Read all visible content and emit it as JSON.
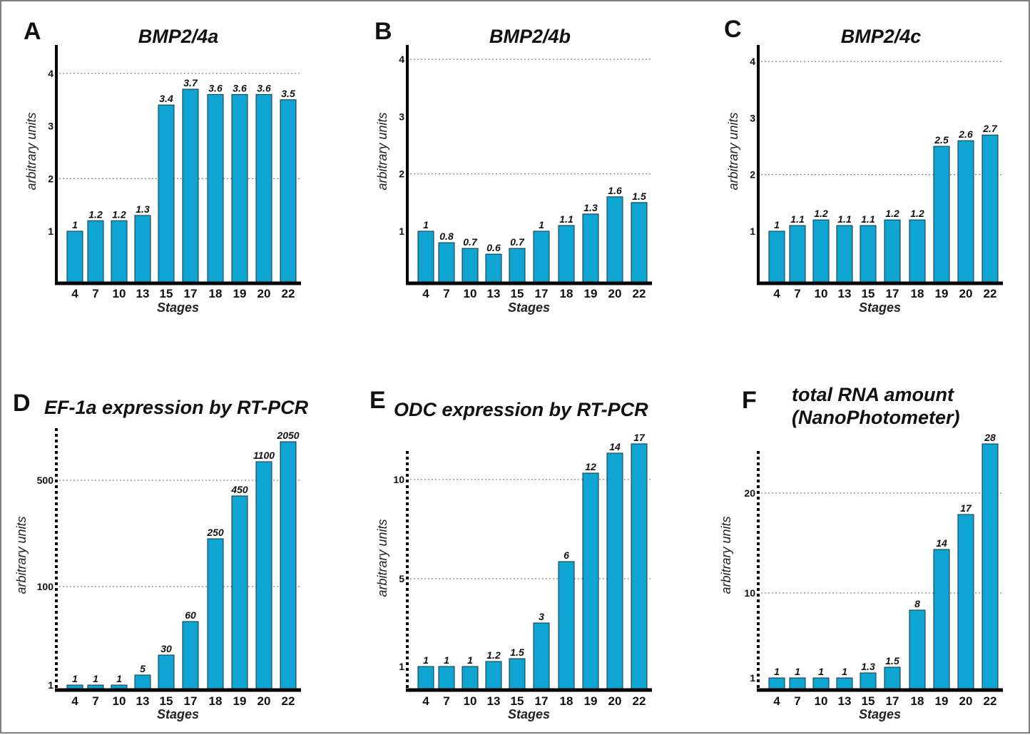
{
  "chart_data": [
    {
      "panel": "A",
      "type": "bar",
      "title": "BMP2/4a",
      "xlabel": "Stages",
      "ylabel": "arbitrary units",
      "categories": [
        "4",
        "7",
        "10",
        "13",
        "15",
        "17",
        "18",
        "19",
        "20",
        "22"
      ],
      "values": [
        1,
        1.2,
        1.2,
        1.3,
        3.4,
        3.7,
        3.6,
        3.6,
        3.6,
        3.5
      ],
      "data_labels": [
        "1",
        "1.2",
        "1.2",
        "1.3",
        "3.4",
        "3.7",
        "3.6",
        "3.6",
        "3.6",
        "3.5"
      ],
      "yticks": [
        "1",
        "2",
        "3",
        "4"
      ],
      "ylim": [
        0,
        4.5
      ],
      "grid": "dotted horizontal at 2 and 4"
    },
    {
      "panel": "B",
      "type": "bar",
      "title": "BMP2/4b",
      "xlabel": "Stages",
      "ylabel": "arbitrary units",
      "categories": [
        "4",
        "7",
        "10",
        "13",
        "15",
        "17",
        "18",
        "19",
        "20",
        "22"
      ],
      "values": [
        1,
        0.8,
        0.7,
        0.6,
        0.7,
        1,
        1.1,
        1.3,
        1.6,
        1.5
      ],
      "data_labels": [
        "1",
        "0.8",
        "0.7",
        "0.6",
        "0.7",
        "1",
        "1.1",
        "1.3",
        "1.6",
        "1.5"
      ],
      "yticks": [
        "1",
        "2",
        "3",
        "4"
      ],
      "ylim": [
        0,
        4.2
      ],
      "grid": "dotted horizontal at 2 and 4"
    },
    {
      "panel": "C",
      "type": "bar",
      "title": "BMP2/4c",
      "xlabel": "Stages",
      "ylabel": "arbitrary units",
      "categories": [
        "4",
        "7",
        "10",
        "13",
        "15",
        "17",
        "18",
        "19",
        "20",
        "22"
      ],
      "values": [
        1,
        1.1,
        1.2,
        1.1,
        1.1,
        1.2,
        1.2,
        2.5,
        2.6,
        2.7
      ],
      "data_labels": [
        "1",
        "1.1",
        "1.2",
        "1.1",
        "1.1",
        "1.2",
        "1.2",
        "2.5",
        "2.6",
        "2.7"
      ],
      "yticks": [
        "1",
        "2",
        "3",
        "4"
      ],
      "ylim": [
        0,
        4.2
      ],
      "grid": "dotted horizontal at 2 and 4"
    },
    {
      "panel": "D",
      "type": "bar",
      "title": "EF-1a expression by RT-PCR",
      "xlabel": "Stages",
      "ylabel": "arbitrary units",
      "categories": [
        "4",
        "7",
        "10",
        "13",
        "15",
        "17",
        "18",
        "19",
        "20",
        "22"
      ],
      "values": [
        1,
        1,
        1,
        5,
        30,
        60,
        250,
        450,
        1100,
        2050
      ],
      "data_labels": [
        "1",
        "1",
        "1",
        "5",
        "30",
        "60",
        "250",
        "450",
        "1100",
        "2050"
      ],
      "yticks": [
        "1",
        "100",
        "500"
      ],
      "yscale": "nonlinear (broken)",
      "grid": "dotted horizontal at 100 and 500"
    },
    {
      "panel": "E",
      "type": "bar",
      "title": "ODC expression by RT-PCR",
      "xlabel": "Stages",
      "ylabel": "arbitrary units",
      "categories": [
        "4",
        "7",
        "10",
        "13",
        "15",
        "17",
        "18",
        "19",
        "20",
        "22"
      ],
      "values": [
        1,
        1,
        1,
        1.2,
        1.5,
        3,
        6,
        12,
        14,
        17
      ],
      "data_labels": [
        "1",
        "1",
        "1",
        "1.2",
        "1.5",
        "3",
        "6",
        "12",
        "14",
        "17"
      ],
      "yticks": [
        "1",
        "5",
        "10"
      ],
      "yscale": "nonlinear (broken)",
      "grid": "dotted horizontal at 5 and 10"
    },
    {
      "panel": "F",
      "type": "bar",
      "title": [
        "total RNA amount",
        "(NanoPhotometer)"
      ],
      "xlabel": "Stages",
      "ylabel": "arbitrary units",
      "categories": [
        "4",
        "7",
        "10",
        "13",
        "15",
        "17",
        "18",
        "19",
        "20",
        "22"
      ],
      "values": [
        1,
        1,
        1,
        1,
        1.3,
        1.5,
        8,
        14,
        17,
        28
      ],
      "data_labels": [
        "1",
        "1",
        "1",
        "1",
        "1.3",
        "1.5",
        "8",
        "14",
        "17",
        "28"
      ],
      "yticks": [
        "1",
        "10",
        "20"
      ],
      "yscale": "nonlinear (broken)",
      "grid": "dotted horizontal at 10 and 20"
    }
  ],
  "colors": {
    "bar_fill": "#0ea5d2",
    "bar_stroke": "#12323f",
    "axis": "#000000",
    "grid": "#666666"
  }
}
